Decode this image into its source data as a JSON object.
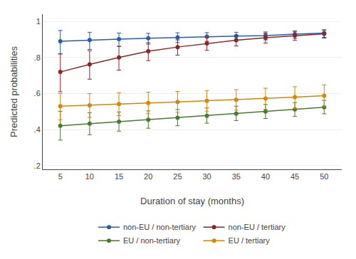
{
  "chart_data": {
    "type": "line",
    "x_label": "Duration of stay (months)",
    "y_label": "Predicted probabilities",
    "x": [
      5,
      10,
      15,
      20,
      25,
      30,
      35,
      40,
      45,
      50
    ],
    "series": [
      {
        "name": "non-EU / non-tertiary",
        "color": "#2a5caa",
        "marker": "circle",
        "values": [
          0.89,
          0.897,
          0.902,
          0.907,
          0.912,
          0.916,
          0.919,
          0.922,
          0.93,
          0.935
        ],
        "ci_lo": [
          0.82,
          0.845,
          0.862,
          0.874,
          0.883,
          0.89,
          0.895,
          0.898,
          0.906,
          0.912
        ],
        "ci_hi": [
          0.95,
          0.94,
          0.936,
          0.934,
          0.937,
          0.938,
          0.94,
          0.942,
          0.948,
          0.953
        ]
      },
      {
        "name": "non-EU / tertiary",
        "color": "#8b2626",
        "marker": "circle",
        "values": [
          0.72,
          0.762,
          0.8,
          0.835,
          0.858,
          0.878,
          0.896,
          0.91,
          0.922,
          0.932
        ],
        "ci_lo": [
          0.61,
          0.68,
          0.73,
          0.783,
          0.813,
          0.84,
          0.864,
          0.88,
          0.895,
          0.908
        ],
        "ci_hi": [
          0.82,
          0.838,
          0.862,
          0.882,
          0.898,
          0.912,
          0.924,
          0.935,
          0.945,
          0.953
        ]
      },
      {
        "name": "EU / non-tertiary",
        "color": "#4a7a2e",
        "marker": "circle",
        "values": [
          0.422,
          0.433,
          0.444,
          0.455,
          0.466,
          0.477,
          0.489,
          0.501,
          0.512,
          0.524
        ],
        "ci_lo": [
          0.342,
          0.372,
          0.392,
          0.408,
          0.422,
          0.436,
          0.45,
          0.462,
          0.474,
          0.488
        ],
        "ci_hi": [
          0.502,
          0.494,
          0.498,
          0.504,
          0.512,
          0.52,
          0.53,
          0.54,
          0.55,
          0.562
        ]
      },
      {
        "name": "EU / tertiary",
        "color": "#d4860b",
        "marker": "circle",
        "values": [
          0.53,
          0.535,
          0.542,
          0.548,
          0.554,
          0.56,
          0.566,
          0.573,
          0.58,
          0.588
        ],
        "ci_lo": [
          0.455,
          0.468,
          0.478,
          0.488,
          0.496,
          0.503,
          0.508,
          0.513,
          0.518,
          0.528
        ],
        "ci_hi": [
          0.6,
          0.6,
          0.605,
          0.608,
          0.612,
          0.617,
          0.622,
          0.63,
          0.638,
          0.648
        ]
      }
    ],
    "xlim": [
      2,
      53
    ],
    "ylim": [
      0.18,
      1.04
    ],
    "xticks": [
      5,
      10,
      15,
      20,
      25,
      30,
      35,
      40,
      45,
      50
    ],
    "yticks": [
      {
        "value": 0.2,
        "label": ".2"
      },
      {
        "value": 0.4,
        "label": ".4"
      },
      {
        "value": 0.6,
        "label": ".6"
      },
      {
        "value": 0.8,
        "label": ".8"
      },
      1
    ],
    "grid": "y",
    "legend": "bottom"
  }
}
